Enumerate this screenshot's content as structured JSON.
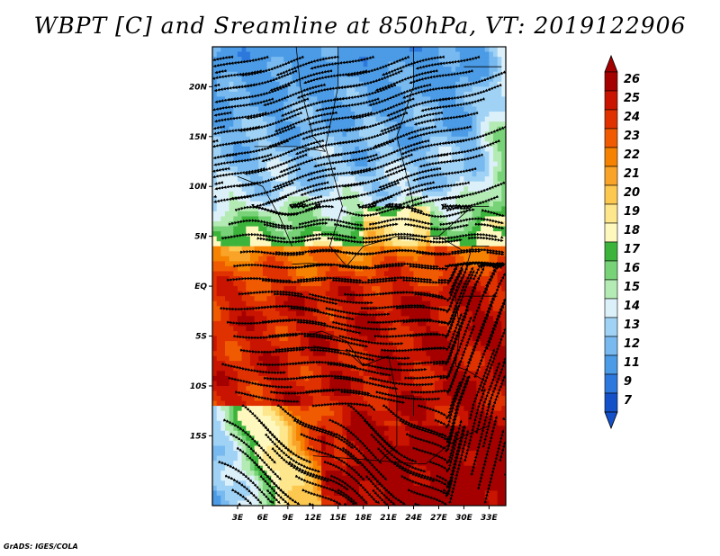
{
  "title": "WBPT [C] and Sreamline at 850hPa, VT: 2019122906",
  "footer": "GrADS: IGES/COLA",
  "map": {
    "variable": "Wet-bulb potential temperature",
    "units": "C",
    "level": "850hPa",
    "valid_time": "2019122906",
    "lat_range": [
      -22,
      24
    ],
    "lon_range": [
      0,
      35
    ],
    "lat_ticks": [
      {
        "value": 20,
        "label": "20N"
      },
      {
        "value": 15,
        "label": "15N"
      },
      {
        "value": 10,
        "label": "10N"
      },
      {
        "value": 5,
        "label": "5N"
      },
      {
        "value": 0,
        "label": "EQ"
      },
      {
        "value": -5,
        "label": "5S"
      },
      {
        "value": -10,
        "label": "10S"
      },
      {
        "value": -15,
        "label": "15S"
      }
    ],
    "lon_ticks": [
      {
        "value": 3,
        "label": "3E"
      },
      {
        "value": 6,
        "label": "6E"
      },
      {
        "value": 9,
        "label": "9E"
      },
      {
        "value": 12,
        "label": "12E"
      },
      {
        "value": 15,
        "label": "15E"
      },
      {
        "value": 18,
        "label": "18E"
      },
      {
        "value": 21,
        "label": "21E"
      },
      {
        "value": 24,
        "label": "24E"
      },
      {
        "value": 27,
        "label": "27E"
      },
      {
        "value": 30,
        "label": "30E"
      },
      {
        "value": 33,
        "label": "33E"
      }
    ]
  },
  "colorbar": {
    "levels": [
      "26",
      "25",
      "24",
      "23",
      "22",
      "21",
      "20",
      "19",
      "18",
      "17",
      "16",
      "15",
      "14",
      "13",
      "12",
      "11",
      "9",
      "7"
    ],
    "colors": [
      "#a50000",
      "#c81400",
      "#e03200",
      "#f05a00",
      "#f58200",
      "#f9a428",
      "#fcc850",
      "#fde68c",
      "#fff8be",
      "#3cb43c",
      "#78d278",
      "#b4eab4",
      "#dcf0fa",
      "#a0d2f5",
      "#78b9f0",
      "#4b9be6",
      "#2d78dc",
      "#1450c8"
    ]
  }
}
